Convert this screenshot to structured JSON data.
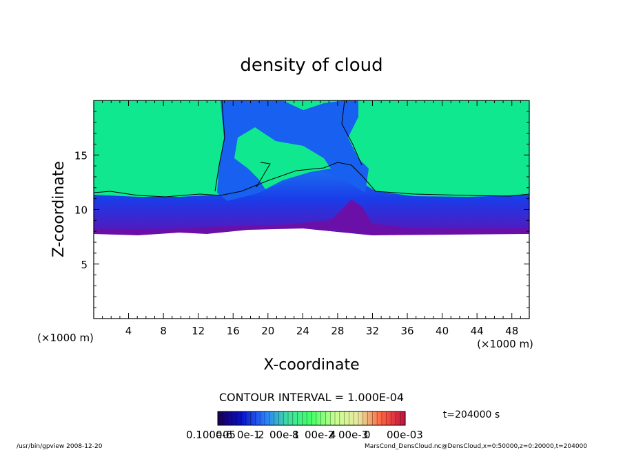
{
  "chart_data": {
    "type": "heatmap",
    "title": "density of cloud",
    "xlabel": "X-coordinate",
    "ylabel": "Z-coordinate",
    "x_unit_left": "(×1000 m)",
    "x_unit_right": "(×1000 m)",
    "xlim": [
      0,
      50
    ],
    "ylim": [
      0,
      20
    ],
    "xticks": [
      4,
      8,
      12,
      16,
      20,
      24,
      28,
      32,
      36,
      40,
      44,
      48
    ],
    "yticks": [
      5,
      10,
      15
    ],
    "contour_interval": "CONTOUR INTERVAL = 1.000E-04",
    "time_label": "t=204000 s",
    "colorbar_labels": [
      "0.1000",
      "e-6",
      "05",
      "0e-1",
      "2",
      "00e-1",
      "8",
      "00e-2",
      "4",
      "00e-3",
      "0",
      "00e-03"
    ],
    "colorbar_stops": [
      "#1a0050",
      "#0a10c8",
      "#2a7aff",
      "#40e0a0",
      "#44ff66",
      "#c8ff90",
      "#e8e8a0",
      "#ff6040",
      "#c01040"
    ],
    "footer_left": "/usr/bin/gpview   2008-12-20",
    "footer_right": "MarsCond_DensCloud.nc@DensCloud,x=0:50000,z=0:20000,t=204000",
    "field_colors": {
      "background_green": "#10e890",
      "blue": "#1060f0",
      "deep_blue": "#1020d8",
      "purple": "#7010a8"
    }
  }
}
